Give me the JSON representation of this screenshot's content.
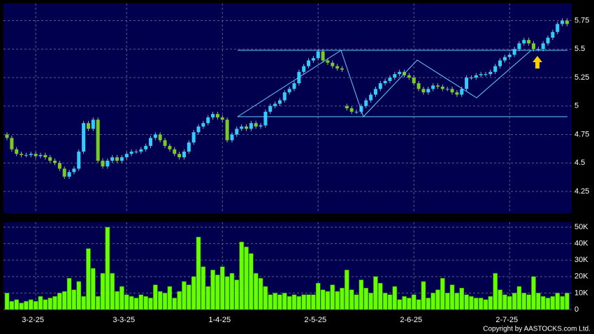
{
  "chart_data": [
    {
      "type": "candlestick",
      "categories": [
        null,
        null,
        null,
        null,
        null,
        null,
        "3-2-25",
        null,
        null,
        null,
        null,
        null,
        null,
        null,
        null,
        null,
        null,
        null,
        null,
        null,
        null,
        null,
        null,
        null,
        null,
        "3-3-25",
        null,
        null,
        null,
        null,
        null,
        null,
        null,
        null,
        null,
        null,
        null,
        null,
        null,
        null,
        null,
        null,
        null,
        null,
        null,
        "1-4-25",
        null,
        null,
        null,
        null,
        null,
        null,
        null,
        null,
        null,
        null,
        null,
        null,
        null,
        null,
        null,
        null,
        null,
        null,
        null,
        "2-5-25",
        null,
        null,
        null,
        null,
        null,
        null,
        null,
        null,
        null,
        null,
        null,
        null,
        null,
        null,
        null,
        null,
        null,
        null,
        null,
        "2-6-25",
        null,
        null,
        null,
        null,
        null,
        null,
        null,
        null,
        null,
        null,
        null,
        null,
        null,
        null,
        null,
        null,
        null,
        null,
        null,
        "2-7-25",
        null,
        null,
        null,
        null,
        null,
        null,
        null,
        null,
        null,
        null,
        null,
        null
      ],
      "open": [
        4.75,
        4.72,
        4.62,
        4.58,
        4.57,
        4.57,
        4.58,
        4.56,
        4.57,
        4.55,
        4.52,
        4.5,
        4.45,
        4.38,
        4.42,
        4.45,
        4.6,
        4.85,
        4.8,
        4.88,
        4.52,
        4.47,
        4.52,
        4.55,
        4.52,
        4.55,
        4.58,
        4.6,
        4.6,
        4.62,
        4.65,
        4.72,
        4.75,
        4.7,
        4.65,
        4.62,
        4.58,
        4.55,
        4.6,
        4.68,
        4.77,
        4.82,
        4.85,
        4.9,
        4.93,
        4.9,
        4.88,
        4.7,
        4.75,
        4.8,
        4.82,
        4.8,
        4.85,
        4.82,
        4.83,
        4.95,
        5.0,
        5.02,
        5.05,
        5.12,
        5.15,
        5.2,
        5.3,
        5.35,
        5.4,
        5.42,
        5.48,
        5.4,
        5.38,
        5.35,
        5.33,
        5.0,
        4.98,
        4.95,
        4.95,
        5.0,
        5.05,
        5.1,
        5.15,
        5.2,
        5.22,
        5.25,
        5.28,
        5.3,
        5.27,
        5.25,
        5.2,
        5.15,
        5.12,
        5.15,
        5.18,
        5.17,
        5.15,
        5.15,
        5.12,
        5.1,
        5.15,
        5.25,
        5.25,
        5.27,
        5.28,
        5.28,
        5.3,
        5.35,
        5.4,
        5.43,
        5.45,
        5.5,
        5.55,
        5.58,
        5.55,
        5.5,
        5.5,
        5.55,
        5.6,
        5.65,
        5.72,
        5.75
      ],
      "high": [
        4.77,
        4.74,
        4.64,
        4.6,
        4.59,
        4.6,
        4.6,
        4.59,
        4.59,
        4.57,
        4.54,
        4.52,
        4.47,
        4.44,
        4.47,
        4.62,
        4.87,
        4.87,
        4.9,
        4.9,
        4.54,
        4.54,
        4.57,
        4.57,
        4.57,
        4.6,
        4.62,
        4.62,
        4.64,
        4.67,
        4.74,
        4.77,
        4.77,
        4.72,
        4.67,
        4.64,
        4.6,
        4.62,
        4.7,
        4.79,
        4.84,
        4.87,
        4.92,
        4.95,
        4.95,
        4.92,
        4.9,
        4.77,
        4.82,
        4.84,
        4.84,
        4.87,
        4.87,
        4.85,
        4.97,
        5.02,
        5.04,
        5.07,
        5.14,
        5.17,
        5.22,
        5.32,
        5.37,
        5.42,
        5.44,
        5.5,
        5.5,
        5.42,
        5.4,
        5.37,
        5.35,
        5.02,
        5.0,
        4.97,
        5.02,
        5.07,
        5.12,
        5.17,
        5.22,
        5.24,
        5.27,
        5.3,
        5.32,
        5.32,
        5.29,
        5.27,
        5.22,
        5.17,
        5.17,
        5.2,
        5.2,
        5.19,
        5.17,
        5.17,
        5.14,
        5.17,
        5.27,
        5.27,
        5.29,
        5.3,
        5.3,
        5.32,
        5.37,
        5.42,
        5.45,
        5.47,
        5.52,
        5.57,
        5.6,
        5.6,
        5.57,
        5.52,
        5.57,
        5.62,
        5.67,
        5.74,
        5.77,
        5.77
      ],
      "low": [
        4.7,
        4.6,
        4.56,
        4.55,
        4.55,
        4.55,
        4.54,
        4.54,
        4.53,
        4.5,
        4.48,
        4.43,
        4.36,
        4.36,
        4.4,
        4.43,
        4.58,
        4.78,
        4.78,
        4.5,
        4.45,
        4.45,
        4.5,
        4.5,
        4.5,
        4.53,
        4.56,
        4.58,
        4.58,
        4.6,
        4.63,
        4.7,
        4.68,
        4.63,
        4.6,
        4.56,
        4.53,
        4.53,
        4.58,
        4.66,
        4.75,
        4.8,
        4.83,
        4.88,
        4.88,
        4.86,
        4.68,
        4.68,
        4.73,
        4.78,
        4.78,
        4.78,
        4.8,
        4.8,
        4.81,
        4.93,
        4.98,
        5.0,
        5.03,
        5.1,
        5.13,
        5.18,
        5.28,
        5.33,
        5.38,
        5.4,
        5.38,
        5.36,
        5.33,
        5.31,
        5.3,
        4.96,
        4.93,
        4.93,
        4.93,
        4.98,
        5.03,
        5.08,
        5.13,
        5.18,
        5.2,
        5.23,
        5.26,
        5.25,
        5.23,
        5.18,
        5.13,
        5.1,
        5.1,
        5.13,
        5.15,
        5.13,
        5.13,
        5.1,
        5.08,
        5.08,
        5.13,
        5.23,
        5.23,
        5.25,
        5.26,
        5.26,
        5.28,
        5.33,
        5.38,
        5.41,
        5.43,
        5.48,
        5.53,
        5.53,
        5.48,
        5.48,
        5.48,
        5.53,
        5.58,
        5.63,
        5.7,
        5.7
      ],
      "close": [
        4.72,
        4.62,
        4.58,
        4.57,
        4.57,
        4.58,
        4.56,
        4.57,
        4.55,
        4.52,
        4.5,
        4.45,
        4.38,
        4.42,
        4.45,
        4.6,
        4.85,
        4.8,
        4.88,
        4.52,
        4.47,
        4.52,
        4.55,
        4.52,
        4.55,
        4.58,
        4.6,
        4.6,
        4.62,
        4.65,
        4.72,
        4.75,
        4.7,
        4.65,
        4.62,
        4.58,
        4.55,
        4.6,
        4.68,
        4.77,
        4.82,
        4.85,
        4.9,
        4.93,
        4.9,
        4.88,
        4.7,
        4.75,
        4.8,
        4.82,
        4.8,
        4.85,
        4.82,
        4.83,
        4.95,
        5.0,
        5.02,
        5.05,
        5.12,
        5.15,
        5.2,
        5.3,
        5.35,
        5.4,
        5.42,
        5.48,
        5.4,
        5.38,
        5.35,
        5.33,
        5.32,
        4.98,
        4.95,
        4.95,
        5.0,
        5.05,
        5.1,
        5.15,
        5.2,
        5.22,
        5.25,
        5.28,
        5.3,
        5.27,
        5.25,
        5.2,
        5.15,
        5.12,
        5.15,
        5.18,
        5.17,
        5.15,
        5.15,
        5.12,
        5.1,
        5.15,
        5.25,
        5.25,
        5.27,
        5.28,
        5.28,
        5.3,
        5.35,
        5.4,
        5.43,
        5.45,
        5.5,
        5.55,
        5.58,
        5.55,
        5.5,
        5.5,
        5.55,
        5.6,
        5.65,
        5.72,
        5.75,
        5.72
      ],
      "up_color": "#33ccff",
      "down_color": "#77cc22",
      "ylim": [
        4.06,
        5.9
      ],
      "yticks": [
        4.25,
        4.5,
        4.75,
        5,
        5.25,
        5.5,
        5.75
      ],
      "grid": true
    },
    {
      "type": "bar",
      "values": [
        10000,
        5000,
        6000,
        4000,
        5000,
        6000,
        5000,
        8000,
        6000,
        7000,
        8000,
        10000,
        11000,
        19000,
        12000,
        17000,
        8000,
        37000,
        25000,
        8000,
        22000,
        50000,
        22000,
        11000,
        14000,
        9000,
        8000,
        7000,
        9000,
        8000,
        7000,
        15000,
        11000,
        10000,
        14000,
        7000,
        11000,
        17000,
        15000,
        20000,
        44000,
        26000,
        14000,
        24000,
        21000,
        26000,
        20000,
        22000,
        18000,
        41000,
        38000,
        34000,
        22000,
        19000,
        14000,
        9000,
        10000,
        9000,
        10000,
        8000,
        9000,
        8000,
        9000,
        9000,
        9000,
        16000,
        12000,
        11000,
        15000,
        11000,
        13000,
        24000,
        12000,
        9000,
        18000,
        13000,
        10000,
        20000,
        16000,
        10000,
        9000,
        14000,
        6000,
        8000,
        7000,
        9000,
        6000,
        17000,
        7000,
        10000,
        12000,
        19000,
        10000,
        15000,
        10000,
        13000,
        9000,
        8000,
        7000,
        7000,
        6000,
        8000,
        22000,
        12000,
        9000,
        8000,
        10000,
        14000,
        10000,
        9000,
        20000,
        10000,
        8000,
        7000,
        8000,
        10000,
        8000,
        10000
      ],
      "color": "#66ff00",
      "ylim": [
        0,
        53000
      ],
      "yticks": [
        0,
        {
          "value": 10000,
          "label": "10K"
        },
        {
          "value": 20000,
          "label": "20K"
        },
        {
          "value": 30000,
          "label": "30K"
        },
        {
          "value": 40000,
          "label": "40K"
        },
        {
          "value": 50000,
          "label": "50K"
        }
      ],
      "grid": true,
      "note": "Copyright by AASTOCKS.com Ltd."
    }
  ]
}
